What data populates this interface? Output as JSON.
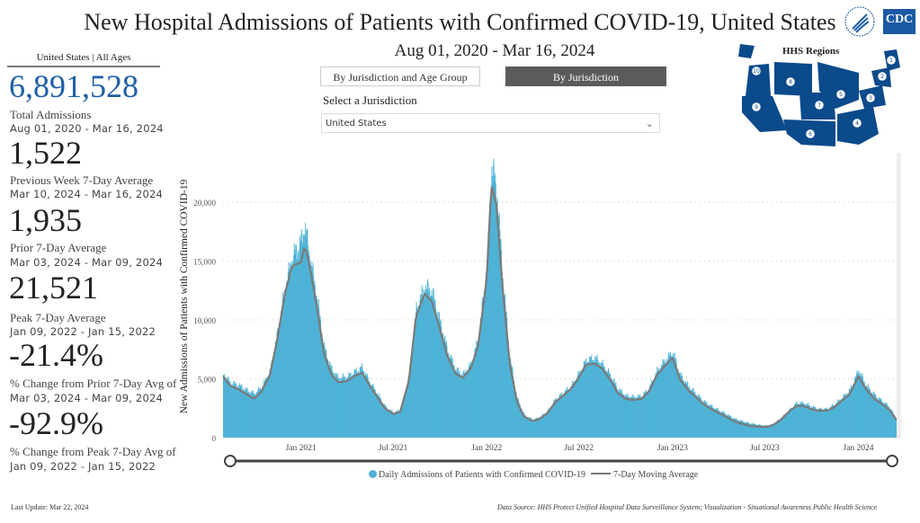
{
  "header": {
    "title": "New Hospital Admissions of Patients with Confirmed COVID-19, United States",
    "date_range": "Aug 01, 2020 - Mar 16, 2024",
    "logos": [
      "hhs-logo-icon",
      "cdc-logo-icon"
    ],
    "cdc_text": "CDC"
  },
  "kpis": {
    "header": "United States | All Ages",
    "total": {
      "value": "6,891,528",
      "label": "Total Admissions",
      "date": "Aug 01, 2020 - Mar 16, 2024"
    },
    "prev_week": {
      "value": "1,522",
      "label": "Previous Week 7-Day Average",
      "date": "Mar 10, 2024 - Mar 16, 2024"
    },
    "prior": {
      "value": "1,935",
      "label": "Prior 7-Day Average",
      "date": "Mar 03, 2024 - Mar 09, 2024"
    },
    "peak": {
      "value": "21,521",
      "label": "Peak 7-Day Average",
      "date": "Jan 09, 2022 - Jan 15, 2022"
    },
    "change_prior": {
      "value": "-21.4%",
      "label": "% Change from Prior 7-Day Avg of",
      "date": "Mar 03, 2024 - Mar 09, 2024"
    },
    "change_peak": {
      "value": "-92.9%",
      "label": "% Change from Peak 7-Day Avg of",
      "date": "Jan 09, 2022 - Jan 15, 2022"
    }
  },
  "tabs": [
    {
      "label": "By Jurisdiction and Age Group",
      "active": false
    },
    {
      "label": "By Jurisdiction",
      "active": true
    }
  ],
  "jurisdiction": {
    "label": "Select a Jurisdiction",
    "selected": "United States"
  },
  "map": {
    "title": "HHS Regions",
    "region_numbers": [
      "1",
      "2",
      "3",
      "4",
      "5",
      "6",
      "7",
      "8",
      "9",
      "10"
    ],
    "color": "#0b4a8b"
  },
  "footer": {
    "last_update": "Last Update: Mar 22, 2024",
    "source": "Data Source: HHS Protect Unified Hospital Data Surveillance System; Visualization - Situational Awareness Public Health Science"
  },
  "chart_data": {
    "type": "area",
    "title": "",
    "xlabel": "",
    "ylabel": "New Admissions of Patients with Confirmed COVID-19",
    "ylim": [
      0,
      23000
    ],
    "xlim": [
      "2020-08-01",
      "2024-03-16"
    ],
    "yticks": [
      0,
      5000,
      10000,
      15000,
      20000
    ],
    "ytick_labels": [
      "0",
      "5,000",
      "10,000",
      "15,000",
      "20,000"
    ],
    "xticks": [
      "2021-01-01",
      "2021-07-01",
      "2022-01-01",
      "2022-07-01",
      "2023-01-01",
      "2023-07-01",
      "2024-01-01"
    ],
    "xtick_labels": [
      "Jan 2021",
      "Jul 2021",
      "Jan 2022",
      "Jul 2022",
      "Jan 2023",
      "Jul 2023",
      "Jan 2024"
    ],
    "grid": true,
    "legend": "bottom",
    "colors": {
      "daily": "#4eb3d6",
      "avg": "#7a7a7a"
    },
    "series": [
      {
        "name": "Daily Admissions of Patients with Confirmed COVID-19",
        "kind": "bar",
        "x": [
          "2020-08-01",
          "2020-08-15",
          "2020-09-01",
          "2020-09-15",
          "2020-10-01",
          "2020-10-15",
          "2020-11-01",
          "2020-11-15",
          "2020-12-01",
          "2020-12-15",
          "2021-01-01",
          "2021-01-08",
          "2021-01-15",
          "2021-02-01",
          "2021-02-15",
          "2021-03-01",
          "2021-03-15",
          "2021-04-01",
          "2021-04-15",
          "2021-05-01",
          "2021-05-15",
          "2021-06-01",
          "2021-06-15",
          "2021-07-01",
          "2021-07-15",
          "2021-08-01",
          "2021-08-15",
          "2021-09-01",
          "2021-09-15",
          "2021-10-01",
          "2021-10-15",
          "2021-11-01",
          "2021-11-15",
          "2021-12-01",
          "2021-12-15",
          "2022-01-01",
          "2022-01-10",
          "2022-01-20",
          "2022-02-01",
          "2022-02-15",
          "2022-03-01",
          "2022-03-15",
          "2022-04-01",
          "2022-04-15",
          "2022-05-01",
          "2022-05-15",
          "2022-06-01",
          "2022-06-15",
          "2022-07-01",
          "2022-07-15",
          "2022-08-01",
          "2022-08-15",
          "2022-09-01",
          "2022-09-15",
          "2022-10-01",
          "2022-10-15",
          "2022-11-01",
          "2022-11-15",
          "2022-12-01",
          "2022-12-15",
          "2023-01-01",
          "2023-01-15",
          "2023-02-01",
          "2023-02-15",
          "2023-03-01",
          "2023-03-15",
          "2023-04-01",
          "2023-04-15",
          "2023-05-01",
          "2023-05-15",
          "2023-06-01",
          "2023-06-15",
          "2023-07-01",
          "2023-07-15",
          "2023-08-01",
          "2023-08-15",
          "2023-09-01",
          "2023-09-15",
          "2023-10-01",
          "2023-10-15",
          "2023-11-01",
          "2023-11-15",
          "2023-12-01",
          "2023-12-15",
          "2024-01-01",
          "2024-01-15",
          "2024-02-01",
          "2024-02-15",
          "2024-03-01",
          "2024-03-16"
        ],
        "values": [
          5400,
          4600,
          4400,
          4000,
          3700,
          4200,
          5600,
          8700,
          12800,
          15200,
          16500,
          17900,
          16000,
          11800,
          7600,
          5800,
          5000,
          5100,
          5500,
          5900,
          4700,
          3600,
          2600,
          2100,
          2300,
          5200,
          10800,
          12700,
          12300,
          9700,
          7400,
          5700,
          5300,
          6200,
          8300,
          14500,
          22800,
          21000,
          13500,
          6700,
          3300,
          1900,
          1500,
          1700,
          2300,
          3200,
          3800,
          4300,
          5400,
          6500,
          6700,
          6200,
          5200,
          4100,
          3500,
          3400,
          3500,
          4100,
          5600,
          6400,
          7200,
          5300,
          4300,
          3700,
          3100,
          2700,
          2300,
          2000,
          1600,
          1400,
          1200,
          1100,
          1000,
          1100,
          1600,
          2200,
          2900,
          2900,
          2600,
          2400,
          2400,
          2800,
          3400,
          4000,
          5700,
          4400,
          3600,
          3100,
          2600,
          1500
        ]
      },
      {
        "name": "7-Day Moving Average",
        "kind": "line",
        "x": [
          "2020-08-01",
          "2020-08-15",
          "2020-09-01",
          "2020-09-15",
          "2020-10-01",
          "2020-10-15",
          "2020-11-01",
          "2020-11-15",
          "2020-12-01",
          "2020-12-15",
          "2021-01-01",
          "2021-01-08",
          "2021-01-15",
          "2021-02-01",
          "2021-02-15",
          "2021-03-01",
          "2021-03-15",
          "2021-04-01",
          "2021-04-15",
          "2021-05-01",
          "2021-05-15",
          "2021-06-01",
          "2021-06-15",
          "2021-07-01",
          "2021-07-15",
          "2021-08-01",
          "2021-08-15",
          "2021-09-01",
          "2021-09-15",
          "2021-10-01",
          "2021-10-15",
          "2021-11-01",
          "2021-11-15",
          "2021-12-01",
          "2021-12-15",
          "2022-01-01",
          "2022-01-10",
          "2022-01-20",
          "2022-02-01",
          "2022-02-15",
          "2022-03-01",
          "2022-03-15",
          "2022-04-01",
          "2022-04-15",
          "2022-05-01",
          "2022-05-15",
          "2022-06-01",
          "2022-06-15",
          "2022-07-01",
          "2022-07-15",
          "2022-08-01",
          "2022-08-15",
          "2022-09-01",
          "2022-09-15",
          "2022-10-01",
          "2022-10-15",
          "2022-11-01",
          "2022-11-15",
          "2022-12-01",
          "2022-12-15",
          "2023-01-01",
          "2023-01-15",
          "2023-02-01",
          "2023-02-15",
          "2023-03-01",
          "2023-03-15",
          "2023-04-01",
          "2023-04-15",
          "2023-05-01",
          "2023-05-15",
          "2023-06-01",
          "2023-06-15",
          "2023-07-01",
          "2023-07-15",
          "2023-08-01",
          "2023-08-15",
          "2023-09-01",
          "2023-09-15",
          "2023-10-01",
          "2023-10-15",
          "2023-11-01",
          "2023-11-15",
          "2023-12-01",
          "2023-12-15",
          "2024-01-01",
          "2024-01-15",
          "2024-02-01",
          "2024-02-15",
          "2024-03-01",
          "2024-03-16"
        ],
        "values": [
          5200,
          4400,
          4100,
          3700,
          3300,
          3900,
          5300,
          8200,
          12300,
          14600,
          14900,
          16200,
          15300,
          11200,
          7200,
          5400,
          4700,
          4800,
          5200,
          5500,
          4500,
          3400,
          2500,
          2000,
          2200,
          4800,
          10300,
          12200,
          11600,
          9200,
          7000,
          5400,
          5100,
          5900,
          7800,
          13500,
          21500,
          19800,
          12800,
          6300,
          3100,
          1800,
          1400,
          1600,
          2100,
          3000,
          3600,
          4100,
          5100,
          6200,
          6300,
          5900,
          4900,
          3800,
          3300,
          3200,
          3300,
          3900,
          5300,
          6000,
          6800,
          5000,
          4000,
          3500,
          2900,
          2500,
          2100,
          1800,
          1400,
          1200,
          1000,
          950,
          900,
          1000,
          1500,
          2100,
          2700,
          2700,
          2400,
          2300,
          2300,
          2600,
          3200,
          3700,
          5200,
          4200,
          3300,
          2900,
          2400,
          1500
        ]
      }
    ]
  }
}
